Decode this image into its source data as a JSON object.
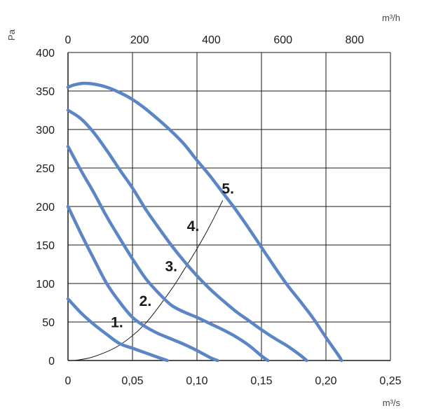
{
  "chart_data": {
    "type": "line",
    "title": "",
    "x_unit_bottom": "m³/s",
    "x_unit_top": "m³/h",
    "y_unit": "Pa",
    "xlim": [
      0,
      0.25
    ],
    "x2lim": [
      0,
      900
    ],
    "ylim": [
      0,
      400
    ],
    "grid": true,
    "x_ticks": [
      "0",
      "0,05",
      "0,10",
      "0,15",
      "0,20",
      "0,25"
    ],
    "x_tick_values": [
      0,
      0.05,
      0.1,
      0.15,
      0.2,
      0.25
    ],
    "x2_ticks": [
      "0",
      "200",
      "400",
      "600",
      "800"
    ],
    "x2_tick_values": [
      0,
      200,
      400,
      600,
      800
    ],
    "y_ticks": [
      "0",
      "50",
      "100",
      "150",
      "200",
      "250",
      "300",
      "350",
      "400"
    ],
    "y_tick_values": [
      0,
      50,
      100,
      150,
      200,
      250,
      300,
      350,
      400
    ],
    "series_color": "#5b85c4",
    "system_curve_color": "#1a1a1a",
    "series": [
      {
        "name": "1.",
        "label_at": [
          0.038,
          43
        ],
        "points": [
          [
            0,
            80
          ],
          [
            0.01,
            62
          ],
          [
            0.02,
            47
          ],
          [
            0.03,
            34
          ],
          [
            0.04,
            22
          ],
          [
            0.05,
            16
          ],
          [
            0.06,
            10
          ],
          [
            0.07,
            4
          ],
          [
            0.077,
            0
          ]
        ]
      },
      {
        "name": "2.",
        "label_at": [
          0.06,
          71
        ],
        "points": [
          [
            0,
            200
          ],
          [
            0.01,
            165
          ],
          [
            0.02,
            132
          ],
          [
            0.03,
            100
          ],
          [
            0.04,
            76
          ],
          [
            0.05,
            56
          ],
          [
            0.06,
            44
          ],
          [
            0.07,
            35
          ],
          [
            0.08,
            28
          ],
          [
            0.09,
            21
          ],
          [
            0.1,
            13
          ],
          [
            0.11,
            4
          ],
          [
            0.116,
            0
          ]
        ]
      },
      {
        "name": "3.",
        "label_at": [
          0.08,
          116
        ],
        "points": [
          [
            0,
            278
          ],
          [
            0.01,
            247
          ],
          [
            0.02,
            218
          ],
          [
            0.03,
            187
          ],
          [
            0.04,
            159
          ],
          [
            0.05,
            132
          ],
          [
            0.06,
            107
          ],
          [
            0.07,
            88
          ],
          [
            0.08,
            72
          ],
          [
            0.09,
            63
          ],
          [
            0.1,
            56
          ],
          [
            0.11,
            48
          ],
          [
            0.12,
            40
          ],
          [
            0.13,
            31
          ],
          [
            0.14,
            20
          ],
          [
            0.15,
            6
          ],
          [
            0.155,
            0
          ]
        ]
      },
      {
        "name": "4.",
        "label_at": [
          0.097,
          168
        ],
        "points": [
          [
            0,
            325
          ],
          [
            0.01,
            314
          ],
          [
            0.02,
            296
          ],
          [
            0.03,
            273
          ],
          [
            0.04,
            248
          ],
          [
            0.05,
            224
          ],
          [
            0.06,
            197
          ],
          [
            0.07,
            173
          ],
          [
            0.08,
            150
          ],
          [
            0.09,
            129
          ],
          [
            0.1,
            110
          ],
          [
            0.11,
            93
          ],
          [
            0.12,
            78
          ],
          [
            0.13,
            64
          ],
          [
            0.14,
            52
          ],
          [
            0.15,
            40
          ],
          [
            0.16,
            29
          ],
          [
            0.17,
            19
          ],
          [
            0.18,
            7
          ],
          [
            0.185,
            0
          ]
        ]
      },
      {
        "name": "5.",
        "label_at": [
          0.124,
          217
        ],
        "points": [
          [
            0,
            355
          ],
          [
            0.005,
            358
          ],
          [
            0.012,
            360
          ],
          [
            0.02,
            359
          ],
          [
            0.03,
            355
          ],
          [
            0.04,
            348
          ],
          [
            0.05,
            339
          ],
          [
            0.06,
            327
          ],
          [
            0.07,
            313
          ],
          [
            0.08,
            298
          ],
          [
            0.09,
            281
          ],
          [
            0.1,
            260
          ],
          [
            0.11,
            240
          ],
          [
            0.12,
            218
          ],
          [
            0.13,
            196
          ],
          [
            0.14,
            172
          ],
          [
            0.15,
            147
          ],
          [
            0.16,
            122
          ],
          [
            0.17,
            98
          ],
          [
            0.18,
            77
          ],
          [
            0.19,
            55
          ],
          [
            0.2,
            30
          ],
          [
            0.21,
            6
          ],
          [
            0.212,
            0
          ]
        ]
      }
    ],
    "system_curve": {
      "points": [
        [
          0.005,
          0
        ],
        [
          0.02,
          5
        ],
        [
          0.04,
          20
        ],
        [
          0.06,
          48
        ],
        [
          0.08,
          92
        ],
        [
          0.09,
          118
        ],
        [
          0.1,
          145
        ],
        [
          0.11,
          175
        ],
        [
          0.12,
          208
        ]
      ]
    }
  }
}
